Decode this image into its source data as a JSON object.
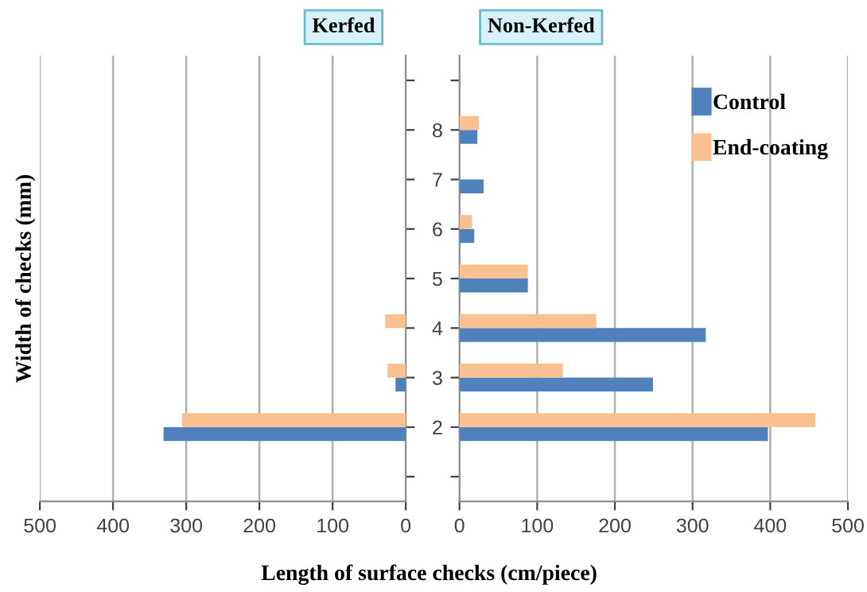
{
  "chart_data": [
    {
      "type": "bar",
      "orientation": "horizontal",
      "title": "Kerfed",
      "ylabel": "Width of checks (mm)",
      "xlabel": "Length of surface checks (cm/piece)",
      "categories": [
        null,
        "8",
        "7",
        "6",
        "5",
        "4",
        "3",
        "2",
        null
      ],
      "series": [
        {
          "color": "#4f81bd",
          "values": [
            null,
            null,
            null,
            null,
            null,
            null,
            14,
            331,
            null
          ]
        },
        {
          "color": "#fac090",
          "values": [
            null,
            null,
            null,
            null,
            null,
            28,
            25,
            306,
            null
          ]
        }
      ],
      "xlim": [
        500,
        0
      ],
      "xticks": [
        500,
        400,
        300,
        200,
        100,
        0
      ],
      "grid": "x",
      "tick_labels": "x",
      "legend": false
    },
    {
      "type": "bar",
      "orientation": "horizontal",
      "title": "Non-Kerfed",
      "categories": [
        null,
        "8",
        "7",
        "6",
        "5",
        "4",
        "3",
        "2",
        null
      ],
      "series": [
        {
          "name": "Control",
          "color": "#4f81bd",
          "values": [
            null,
            23,
            31,
            19,
            88,
            317,
            249,
            397,
            null
          ]
        },
        {
          "name": "End-coating",
          "color": "#fac090",
          "values": [
            null,
            25,
            null,
            16,
            88,
            176,
            133,
            458,
            null
          ]
        }
      ],
      "xlim": [
        0,
        500
      ],
      "xticks": [
        0,
        100,
        200,
        300,
        400,
        500
      ],
      "grid": "x",
      "legend": "top right"
    }
  ]
}
